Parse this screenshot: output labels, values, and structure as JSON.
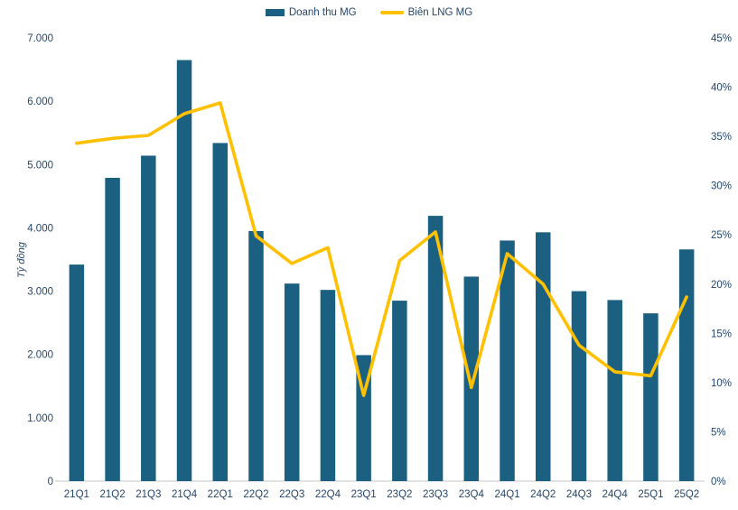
{
  "legend": [
    {
      "label": "Doanh thu MG",
      "type": "bar",
      "color": "#1b6080"
    },
    {
      "label": "Biên LNG MG",
      "type": "line",
      "color": "#ffc000"
    }
  ],
  "colors": {
    "bar": "#1b6080",
    "line": "#ffc000",
    "axis_text": "#24466b",
    "axis_line": "#d9d9d9",
    "background": "#ffffff"
  },
  "chart_data": {
    "type": "combo",
    "title": "",
    "categories": [
      "21Q1",
      "21Q2",
      "21Q3",
      "21Q4",
      "22Q1",
      "22Q2",
      "22Q3",
      "22Q4",
      "23Q1",
      "23Q2",
      "23Q3",
      "23Q4",
      "24Q1",
      "24Q2",
      "24Q3",
      "24Q4",
      "25Q1",
      "25Q2"
    ],
    "series": [
      {
        "name": "Doanh thu MG",
        "type": "bar",
        "axis": "left",
        "color": "#1b6080",
        "values": [
          3420,
          4790,
          5140,
          6650,
          5340,
          3950,
          3120,
          3020,
          1990,
          2850,
          4190,
          3230,
          3800,
          3930,
          3000,
          2860,
          2650,
          3660
        ]
      },
      {
        "name": "Biên LNG MG",
        "type": "line",
        "axis": "right",
        "color": "#ffc000",
        "values": [
          34.3,
          34.8,
          35.1,
          37.3,
          38.4,
          24.9,
          22.1,
          23.7,
          8.7,
          22.4,
          25.3,
          9.5,
          23.1,
          20.0,
          13.8,
          11.1,
          10.7,
          18.7
        ]
      }
    ],
    "left_axis": {
      "title": "Tỷ đồng",
      "min": 0,
      "max": 7000,
      "tick_labels": [
        "0",
        "1.000",
        "2.000",
        "3.000",
        "4.000",
        "5.000",
        "6.000",
        "7.000"
      ]
    },
    "right_axis": {
      "title": "",
      "min": 0,
      "max": 45,
      "tick_labels": [
        "0%",
        "5%",
        "10%",
        "15%",
        "20%",
        "25%",
        "30%",
        "35%",
        "40%",
        "45%"
      ]
    },
    "grid": false,
    "legend_position": "top"
  }
}
